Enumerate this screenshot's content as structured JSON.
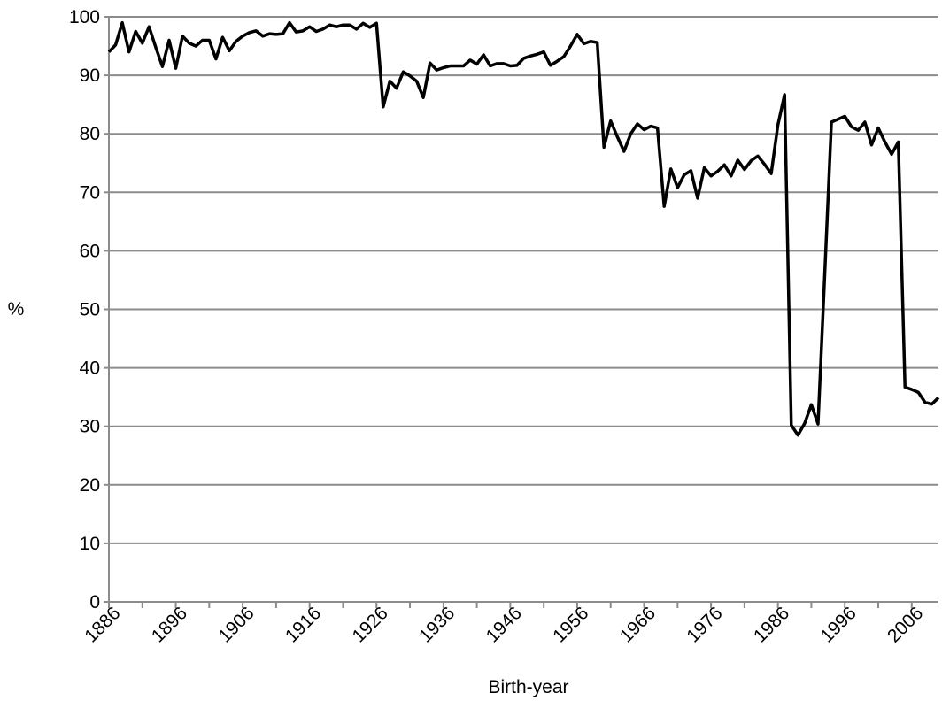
{
  "chart_data": {
    "type": "line",
    "title": "",
    "xlabel": "Birth-year",
    "ylabel": "%",
    "xlim": [
      1886,
      2010
    ],
    "ylim": [
      0,
      100
    ],
    "x_ticks": [
      1886,
      1896,
      1906,
      1916,
      1926,
      1936,
      1946,
      1956,
      1966,
      1976,
      1986,
      1996,
      2006
    ],
    "y_ticks": [
      0,
      10,
      20,
      30,
      40,
      50,
      60,
      70,
      80,
      90,
      100
    ],
    "x_tick_labels": [
      "1886",
      "1896",
      "1906",
      "1916",
      "1926",
      "1936",
      "1946",
      "1956",
      "1966",
      "1976",
      "1986",
      "1996",
      "2006"
    ],
    "y_tick_labels": [
      "0",
      "10",
      "20",
      "30",
      "40",
      "50",
      "60",
      "70",
      "80",
      "90",
      "100"
    ],
    "grid": "horizontal",
    "legend": "none",
    "line_color": "#000000",
    "grid_color": "#8c8c8c",
    "series": [
      {
        "x": [
          1886,
          1887,
          1888,
          1889,
          1890,
          1891,
          1892,
          1893,
          1894,
          1895,
          1896,
          1897,
          1898,
          1899,
          1900,
          1901,
          1902,
          1903,
          1904,
          1905,
          1906,
          1907,
          1908,
          1909,
          1910,
          1911,
          1912,
          1913,
          1914,
          1915,
          1916,
          1917,
          1918,
          1919,
          1920,
          1921,
          1922,
          1923,
          1924,
          1925,
          1926,
          1927,
          1928,
          1929,
          1930,
          1931,
          1932,
          1933,
          1934,
          1935,
          1936,
          1937,
          1938,
          1939,
          1940,
          1941,
          1942,
          1943,
          1944,
          1945,
          1946,
          1947,
          1948,
          1949,
          1950,
          1951,
          1952,
          1953,
          1954,
          1955,
          1956,
          1957,
          1958,
          1959,
          1960,
          1961,
          1962,
          1963,
          1964,
          1965,
          1966,
          1967,
          1968,
          1969,
          1970,
          1971,
          1972,
          1973,
          1974,
          1975,
          1976,
          1977,
          1978,
          1979,
          1980,
          1981,
          1982,
          1983,
          1984,
          1985,
          1986,
          1987,
          1988,
          1989,
          1990,
          1991,
          1992,
          1993,
          1994,
          1995,
          1996,
          1997,
          1998,
          1999,
          2000,
          2001,
          2002,
          2003,
          2004,
          2005,
          2006,
          2007,
          2008,
          2009,
          2010
        ],
        "values": [
          94,
          95.2,
          99,
          94,
          97.5,
          95.5,
          98.3,
          94.8,
          91.5,
          96,
          91.2,
          96.7,
          95.5,
          95,
          96,
          96,
          92.8,
          96.5,
          94.2,
          95.8,
          96.7,
          97.3,
          97.6,
          96.7,
          97.1,
          97,
          97.1,
          99,
          97.4,
          97.6,
          98.3,
          97.5,
          97.9,
          98.6,
          98.3,
          98.6,
          98.6,
          97.9,
          98.9,
          98.2,
          98.9,
          84.6,
          89,
          87.8,
          90.6,
          89.9,
          89,
          86.2,
          92.1,
          90.9,
          91.3,
          91.6,
          91.6,
          91.6,
          92.6,
          91.9,
          93.5,
          91.6,
          92,
          92,
          91.6,
          91.7,
          92.9,
          93.3,
          93.6,
          94,
          91.7,
          92.4,
          93.2,
          95,
          97,
          95.4,
          95.8,
          95.6,
          77.7,
          82.2,
          79.5,
          77,
          80,
          81.7,
          80.7,
          81.3,
          81,
          67.6,
          74,
          70.8,
          73,
          73.7,
          69,
          74.2,
          72.8,
          73.6,
          74.7,
          72.8,
          75.5,
          73.9,
          75.4,
          76.2,
          74.8,
          73.2,
          81.5,
          86.7,
          30.2,
          28.5,
          30.5,
          33.7,
          30.4,
          56,
          82,
          82.5,
          83,
          81.2,
          80.6,
          82,
          78.1,
          81,
          78.6,
          76.5,
          78.6,
          36.7,
          36.3,
          35.8,
          34.1,
          33.8,
          34.9
        ]
      }
    ]
  }
}
